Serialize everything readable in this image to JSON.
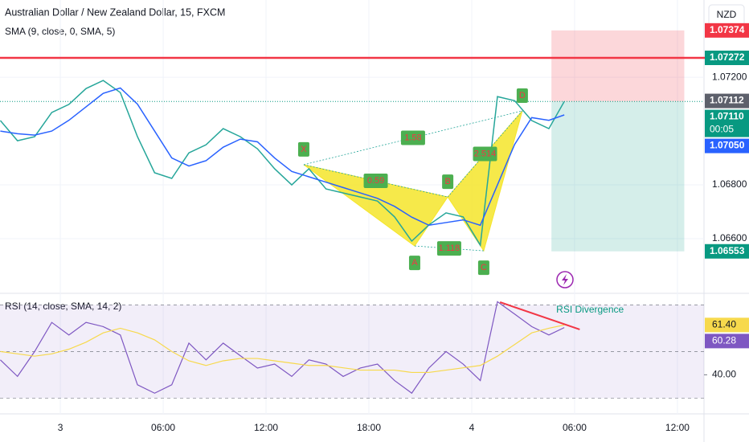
{
  "header": {
    "title": "Australian Dollar / New Zealand Dollar, 15, FXCM",
    "currency": "NZD"
  },
  "chart_data": [
    {
      "type": "line",
      "indicator": "SMA (9, close, 0, SMA, 5)",
      "x": [
        -3.5,
        -2.5,
        -1.5,
        -0.5,
        0.5,
        1.5,
        2.5,
        3.5,
        4.5,
        5.5,
        6.5,
        7.5,
        8.5,
        9.5,
        10.5,
        11.5,
        12.5,
        13.5,
        14.5,
        15.5,
        16.5,
        17.5,
        18.5,
        19.5,
        20.5,
        21.5,
        22.5,
        23.5,
        24.5,
        25.5,
        26.5,
        27.5,
        28.5,
        29.4
      ],
      "xlim": [
        -3.52,
        37.55
      ],
      "xticks": [
        {
          "value": 0,
          "label": "3"
        },
        {
          "value": 6,
          "label": "06:00"
        },
        {
          "value": 12,
          "label": "12:00"
        },
        {
          "value": 18,
          "label": "18:00"
        },
        {
          "value": 24,
          "label": "4"
        },
        {
          "value": 30,
          "label": "06:00"
        },
        {
          "value": 36,
          "label": "12:00"
        }
      ],
      "ylim": [
        1.06397,
        1.07487
      ],
      "yticks": [
        {
          "value": 1.066,
          "label": "1.06600"
        },
        {
          "value": 1.068,
          "label": "1.06800"
        },
        {
          "value": 1.072,
          "label": "1.07200"
        }
      ],
      "series": [
        {
          "color": "#26a69a",
          "values": [
            1.07039,
            1.06964,
            1.06979,
            1.07069,
            1.07099,
            1.07158,
            1.07188,
            1.07143,
            1.06979,
            1.06845,
            1.06824,
            1.06919,
            1.06949,
            1.07009,
            1.06979,
            1.06934,
            1.0686,
            1.068,
            1.0686,
            1.06785,
            1.0677,
            1.06755,
            1.0674,
            1.06681,
            1.06591,
            1.06651,
            1.06696,
            1.06681,
            1.06576,
            1.07128,
            1.07113,
            1.07039,
            1.07009,
            1.0711
          ]
        },
        {
          "color": "#2962ff",
          "values": [
            1.07,
            1.0699,
            1.06985,
            1.07,
            1.0704,
            1.0709,
            1.0714,
            1.0716,
            1.071,
            1.07,
            1.069,
            1.0687,
            1.0689,
            1.0694,
            1.0697,
            1.0696,
            1.069,
            1.0685,
            1.0683,
            1.0681,
            1.0679,
            1.0677,
            1.0675,
            1.0672,
            1.0668,
            1.0665,
            1.0666,
            1.0667,
            1.0665,
            1.068,
            1.0695,
            1.0705,
            1.0704,
            1.0706
          ]
        }
      ],
      "resistance": {
        "value": 1.07272,
        "label": "1.07272",
        "color": "#f23645"
      },
      "position": {
        "x": [
          28.65,
          36.4
        ],
        "stop": 1.07374,
        "entry": 1.0711,
        "target": 1.06553
      },
      "price_labels": [
        {
          "value": 1.07374,
          "label": "1.07374",
          "color": "#f23645"
        },
        {
          "value": 1.07272,
          "label": "1.07272",
          "color": "#089981"
        },
        {
          "value": 1.07112,
          "label": "1.07112",
          "color": "#5d606b"
        },
        {
          "value": 1.0711,
          "label": "1.07110",
          "sub": "00:05",
          "color": "#089981"
        },
        {
          "value": 1.0705,
          "label": "1.07050",
          "color": "#2962ff"
        },
        {
          "value": 1.06553,
          "label": "1.06553",
          "color": "#089981"
        }
      ],
      "pattern": {
        "color": "#f5e52a",
        "points": [
          {
            "label": "X",
            "x": 14.2,
            "price": 1.06875
          },
          {
            "label": "A",
            "x": 20.67,
            "price": 1.06573
          },
          {
            "label": "B",
            "x": 22.6,
            "price": 1.06755
          },
          {
            "label": "C",
            "x": 24.7,
            "price": 1.06555
          },
          {
            "label": "D",
            "x": 26.95,
            "price": 1.07075
          }
        ],
        "ratios": [
          0.59,
          1.58,
          1.118,
          2.514
        ]
      }
    },
    {
      "type": "line",
      "indicator": "RSI (14, close, SMA, 14, 2)",
      "x": [
        -3.5,
        -2.5,
        -1.5,
        -0.5,
        0.5,
        1.5,
        2.5,
        3.5,
        4.5,
        5.5,
        6.5,
        7.5,
        8.5,
        9.5,
        10.5,
        11.5,
        12.5,
        13.5,
        14.5,
        15.5,
        16.5,
        17.5,
        18.5,
        19.5,
        20.5,
        21.5,
        22.5,
        23.5,
        24.5,
        25.5,
        26.5,
        27.5,
        28.5,
        29.4
      ],
      "ylim": [
        23.2,
        75
      ],
      "yticks": [
        {
          "value": 40,
          "label": "40.00"
        }
      ],
      "bands": [
        30,
        50,
        70
      ],
      "series": [
        {
          "color": "#7e57c2",
          "values": [
            46.4,
            39.3,
            50,
            62.5,
            57.1,
            62.5,
            60.7,
            57.1,
            35.7,
            32.1,
            35.7,
            53.6,
            46.4,
            53.6,
            48.2,
            42.9,
            44.6,
            39.3,
            46.4,
            44.6,
            39.3,
            42.9,
            44.6,
            37.5,
            32.1,
            42.9,
            50,
            44.6,
            37.5,
            71.4,
            66.1,
            60.7,
            57.1,
            60.28
          ]
        },
        {
          "color": "#f7d94c",
          "values": [
            50,
            49,
            48,
            49,
            51,
            54,
            58,
            60,
            58,
            55,
            50,
            46,
            44,
            46,
            47,
            47,
            46,
            45,
            44,
            44,
            43,
            42,
            42,
            42,
            41,
            41,
            42,
            43,
            44,
            48,
            53,
            58,
            60,
            61.4
          ]
        }
      ],
      "last_labels": [
        {
          "value": 61.4,
          "label": "61.40",
          "color": "#f7d94c"
        },
        {
          "value": 60.28,
          "label": "60.28",
          "color": "#7e57c2"
        }
      ],
      "divergence": {
        "label": "RSI Divergence",
        "x": [
          25.65,
          30.3
        ],
        "values": [
          71.2,
          59.5
        ],
        "color": "#f23645"
      }
    }
  ]
}
